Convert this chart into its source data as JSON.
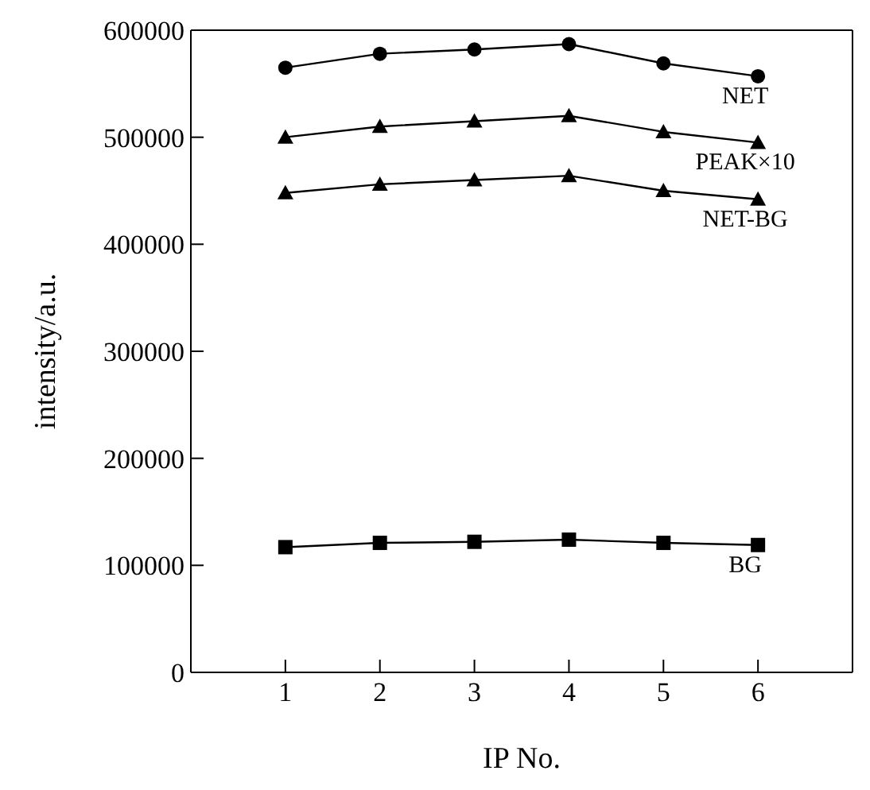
{
  "chart_data": {
    "type": "line",
    "xlabel": "IP No.",
    "ylabel": "intensity/a.u.",
    "x": [
      1,
      2,
      3,
      4,
      5,
      6
    ],
    "xlim": [
      0,
      7
    ],
    "xticks": [
      1,
      2,
      3,
      4,
      5,
      6
    ],
    "ylim": [
      0,
      600000
    ],
    "yticks": [
      0,
      100000,
      200000,
      300000,
      400000,
      500000,
      600000
    ],
    "grid": false,
    "legend": false,
    "line_style": "solid",
    "series": [
      {
        "name": "NET",
        "color": "#000000",
        "marker": "circle",
        "values": [
          565000,
          578000,
          582000,
          587000,
          569000,
          557000
        ]
      },
      {
        "name": "PEAK×10",
        "color": "#000000",
        "marker": "triangle",
        "values": [
          500000,
          510000,
          515000,
          520000,
          505000,
          495000
        ]
      },
      {
        "name": "NET-BG",
        "color": "#000000",
        "marker": "triangle",
        "values": [
          448000,
          456000,
          460000,
          464000,
          450000,
          442000
        ]
      },
      {
        "name": "BG",
        "color": "#000000",
        "marker": "square",
        "values": [
          117000,
          121000,
          122000,
          124000,
          121000,
          119000
        ]
      }
    ]
  }
}
